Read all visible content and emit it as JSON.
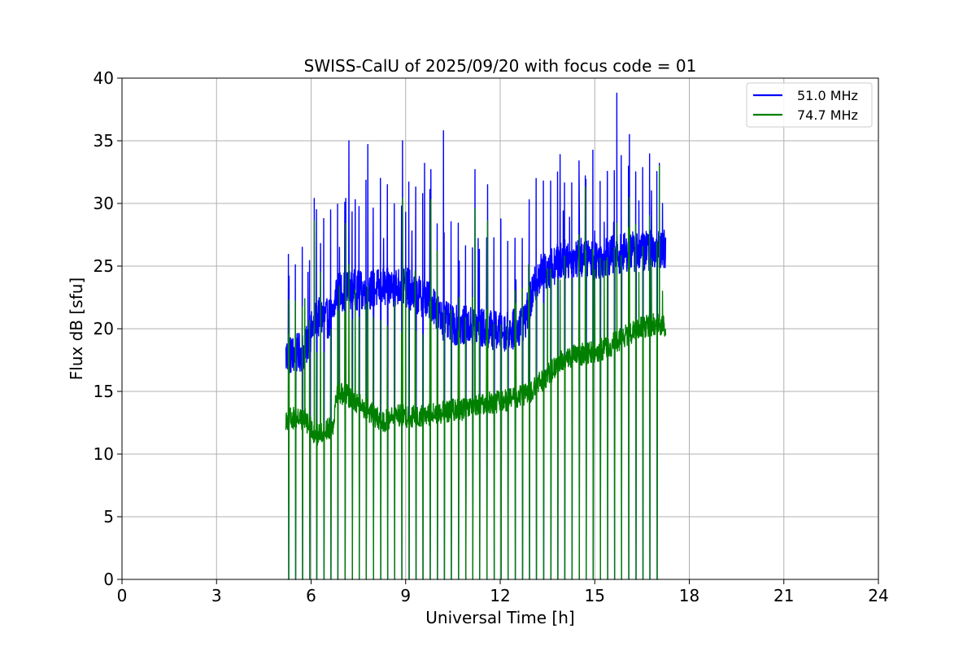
{
  "chart_data": {
    "type": "line",
    "title": "SWISS-CalU of 2025/09/20 with focus code = 01",
    "xlabel": "Universal Time [h]",
    "ylabel": "Flux dB [sfu]",
    "xlim": [
      0,
      24
    ],
    "ylim": [
      0,
      40
    ],
    "xticks": [
      0,
      3,
      6,
      9,
      12,
      15,
      18,
      21,
      24
    ],
    "yticks": [
      0,
      5,
      10,
      15,
      20,
      25,
      30,
      35,
      40
    ],
    "grid": true,
    "legend_position": "top-right",
    "calibration_dips": [
      5.28,
      5.5,
      5.72,
      5.95,
      6.17,
      6.4,
      6.62,
      6.84,
      7.07,
      7.3,
      7.52,
      7.74,
      7.97,
      8.2,
      8.42,
      8.64,
      8.87,
      9.1,
      9.32,
      9.54,
      9.77,
      10.0,
      10.22,
      10.44,
      10.67,
      10.9,
      11.12,
      11.34,
      11.57,
      11.8,
      12.02,
      12.24,
      12.47,
      12.7,
      12.92,
      13.14,
      13.37,
      13.6,
      13.82,
      14.04,
      14.27,
      14.5,
      14.72,
      14.94,
      15.17,
      15.4,
      15.62,
      15.84,
      16.07,
      16.3,
      16.52,
      16.74,
      16.97
    ],
    "series": [
      {
        "name": "51.0 MHz",
        "color": "#0000ff",
        "baseline_x": [
          5.2,
          5.5,
          5.8,
          6.1,
          6.3,
          6.5,
          6.7,
          6.8,
          7.0,
          7.3,
          7.6,
          8.0,
          8.5,
          9.0,
          9.3,
          9.6,
          9.9,
          10.1,
          10.5,
          11.0,
          11.5,
          12.0,
          12.3,
          12.6,
          12.8,
          13.0,
          13.2,
          13.5,
          14.0,
          14.5,
          15.0,
          15.5,
          15.8,
          16.0,
          16.5,
          17.0,
          17.25
        ],
        "baseline_y": [
          17.8,
          18.0,
          18.2,
          20.5,
          21.0,
          20.8,
          21.0,
          23.0,
          23.0,
          23.2,
          23.0,
          23.2,
          23.3,
          23.4,
          22.7,
          22.5,
          22.0,
          20.8,
          20.3,
          20.2,
          20.0,
          19.8,
          19.8,
          20.2,
          20.8,
          22.5,
          24.2,
          24.8,
          25.5,
          25.7,
          25.5,
          25.8,
          26.0,
          26.1,
          26.2,
          26.3,
          26.4
        ],
        "noise": 1.6,
        "spikes": [
          [
            5.3,
            24.2
          ],
          [
            5.9,
            24.5
          ],
          [
            6.1,
            30.4
          ],
          [
            6.3,
            26.8
          ],
          [
            6.9,
            26.5
          ],
          [
            7.1,
            30.4
          ],
          [
            7.2,
            35.0
          ],
          [
            7.4,
            30.3
          ],
          [
            7.8,
            34.7
          ],
          [
            8.3,
            27.2
          ],
          [
            8.9,
            35.0
          ],
          [
            9.0,
            29.3
          ],
          [
            9.2,
            27.8
          ],
          [
            9.6,
            33.2
          ],
          [
            9.8,
            32.7
          ],
          [
            10.2,
            35.8
          ],
          [
            10.7,
            25.4
          ],
          [
            11.2,
            32.7
          ],
          [
            11.6,
            31.5
          ],
          [
            11.3,
            27.2
          ],
          [
            12.5,
            23.9
          ],
          [
            13.2,
            25.1
          ],
          [
            13.9,
            33.9
          ],
          [
            14.2,
            28.9
          ],
          [
            14.5,
            33.4
          ],
          [
            14.7,
            32.2
          ],
          [
            15.0,
            27.8
          ],
          [
            15.3,
            28.5
          ],
          [
            15.7,
            38.8
          ],
          [
            16.1,
            35.5
          ],
          [
            16.4,
            30.2
          ],
          [
            16.8,
            31.0
          ],
          [
            17.05,
            33.2
          ],
          [
            17.15,
            30.0
          ],
          [
            15.6,
            28.5
          ],
          [
            14.0,
            29.4
          ]
        ]
      },
      {
        "name": "74.7 MHz",
        "color": "#008000",
        "baseline_x": [
          5.2,
          5.5,
          5.8,
          6.0,
          6.2,
          6.5,
          6.7,
          6.8,
          7.0,
          7.3,
          7.6,
          7.8,
          8.0,
          8.3,
          8.6,
          9.0,
          9.5,
          10.0,
          10.5,
          11.0,
          11.5,
          12.0,
          12.5,
          13.0,
          13.3,
          13.7,
          14.0,
          14.3,
          14.6,
          15.0,
          15.3,
          15.6,
          16.0,
          16.3,
          16.6,
          17.0,
          17.25
        ],
        "baseline_y": [
          12.8,
          12.9,
          12.8,
          12.0,
          11.5,
          12.0,
          12.3,
          15.0,
          14.8,
          14.5,
          13.8,
          13.5,
          13.0,
          12.5,
          13.2,
          13.0,
          13.0,
          13.3,
          13.5,
          13.6,
          14.0,
          14.2,
          14.5,
          15.0,
          15.8,
          16.8,
          17.5,
          17.8,
          18.0,
          18.2,
          18.4,
          18.8,
          19.5,
          19.8,
          20.2,
          20.4,
          20.3
        ],
        "noise": 0.9,
        "spikes": [
          [
            5.3,
            22.3
          ],
          [
            5.5,
            22.2
          ],
          [
            5.8,
            22.4
          ],
          [
            6.1,
            28.6
          ],
          [
            6.3,
            24.5
          ],
          [
            6.9,
            23.4
          ],
          [
            7.1,
            28.4
          ],
          [
            7.2,
            25.1
          ],
          [
            7.4,
            23.1
          ],
          [
            7.8,
            23.4
          ],
          [
            8.9,
            30.4
          ],
          [
            9.0,
            24.7
          ],
          [
            9.3,
            24.6
          ],
          [
            9.8,
            30.3
          ],
          [
            10.0,
            26.2
          ],
          [
            10.7,
            22.5
          ],
          [
            11.2,
            29.6
          ],
          [
            11.6,
            28.6
          ],
          [
            12.5,
            22.0
          ],
          [
            12.9,
            25.1
          ],
          [
            13.5,
            24.8
          ],
          [
            13.9,
            23.9
          ],
          [
            14.5,
            27.5
          ],
          [
            14.7,
            31.3
          ],
          [
            15.0,
            24.7
          ],
          [
            15.3,
            25.4
          ],
          [
            15.7,
            28.4
          ],
          [
            16.1,
            30.5
          ],
          [
            16.4,
            24.5
          ],
          [
            16.8,
            25.5
          ],
          [
            17.05,
            33.0
          ],
          [
            17.15,
            23.0
          ]
        ]
      }
    ]
  }
}
